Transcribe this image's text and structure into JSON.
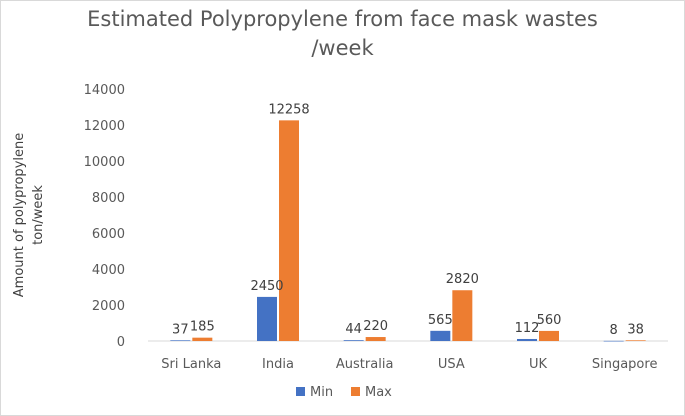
{
  "chart_data": {
    "type": "bar",
    "title_lines": [
      "Estimated Polypropylene from face mask wastes",
      "/week"
    ],
    "xlabel": "",
    "ylabel_lines": [
      "Amount of polypropylene",
      "ton/week"
    ],
    "categories": [
      "Sri Lanka",
      "India",
      "Australia",
      "USA",
      "UK",
      "Singapore"
    ],
    "series": [
      {
        "name": "Min",
        "color": "#4472c4",
        "values": [
          37,
          2450,
          44,
          565,
          112,
          8
        ]
      },
      {
        "name": "Max",
        "color": "#ed7d31",
        "values": [
          185,
          12258,
          220,
          2820,
          560,
          38
        ]
      }
    ],
    "ylim": [
      0,
      14000
    ],
    "yticks": [
      0,
      2000,
      4000,
      6000,
      8000,
      10000,
      12000,
      14000
    ],
    "grid": false,
    "legend_position": "bottom"
  }
}
